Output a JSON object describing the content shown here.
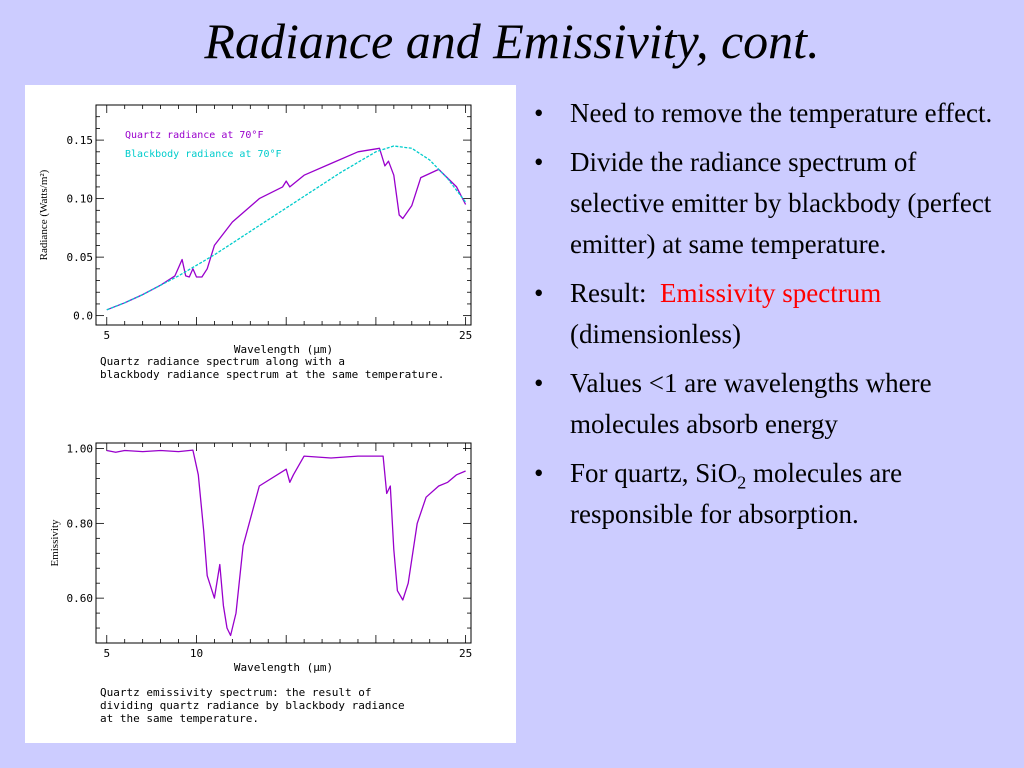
{
  "slide": {
    "title": "Radiance and Emissivity, cont."
  },
  "figure": {
    "top_caption": [
      "Quartz radiance spectrum along with a",
      "blackbody radiance spectrum at the same temperature."
    ],
    "bottom_caption": [
      "Quartz emissivity spectrum: the result of",
      "dividing quartz radiance by blackbody radiance",
      "at the same temperature."
    ]
  },
  "bullets": [
    {
      "text": "Need to remove the temperature effect."
    },
    {
      "text": "Divide the radiance spectrum of selective emitter by blackbody (perfect emitter) at same temperature."
    },
    {
      "prefix": "Result:  ",
      "highlight": "Emissivity spectrum",
      "suffix": " (dimensionless)",
      "highlight_color": "#ff0000"
    },
    {
      "text": "Values <1 are wavelengths where molecules absorb energy"
    },
    {
      "prefix": "For quartz, SiO",
      "sub": "2",
      "suffix": " molecules are responsible for absorption."
    }
  ],
  "chart_data": [
    {
      "type": "line",
      "title": "",
      "xlabel": "Wavelength (μm)",
      "ylabel": "Radiance (Watts/m²)",
      "xlim": [
        4.4,
        25.3
      ],
      "ylim": [
        -0.008,
        0.18
      ],
      "x_ticks": [
        5,
        25
      ],
      "y_ticks": [
        0.0,
        0.05,
        0.1,
        0.15
      ],
      "y_tick_labels": [
        "0.0",
        "0.05",
        "0.10",
        "0.15"
      ],
      "legend": "top-left",
      "series": [
        {
          "name": "Quartz radiance at 70°F",
          "color": "#9900cc",
          "x": [
            5,
            6,
            7,
            8,
            8.8,
            9.0,
            9.2,
            9.4,
            9.6,
            9.8,
            10.0,
            10.3,
            10.6,
            11,
            12,
            13.5,
            14.8,
            15.0,
            15.2,
            16,
            17.5,
            19,
            20.2,
            20.5,
            20.7,
            21.0,
            21.3,
            21.5,
            22.0,
            22.5,
            23.5,
            24.5,
            25
          ],
          "y": [
            0.005,
            0.011,
            0.018,
            0.026,
            0.034,
            0.041,
            0.048,
            0.034,
            0.033,
            0.04,
            0.033,
            0.033,
            0.04,
            0.06,
            0.08,
            0.1,
            0.11,
            0.115,
            0.11,
            0.12,
            0.13,
            0.14,
            0.143,
            0.128,
            0.132,
            0.12,
            0.086,
            0.083,
            0.094,
            0.118,
            0.125,
            0.11,
            0.095
          ]
        },
        {
          "name": "Blackbody radiance at 70°F",
          "color": "#00cccc",
          "x": [
            5,
            6,
            7,
            8,
            9,
            10,
            11,
            12,
            13,
            14,
            15,
            16,
            17,
            18,
            19,
            20,
            21,
            22,
            23,
            24,
            25
          ],
          "y": [
            0.005,
            0.011,
            0.018,
            0.026,
            0.034,
            0.043,
            0.052,
            0.062,
            0.072,
            0.082,
            0.092,
            0.102,
            0.112,
            0.122,
            0.131,
            0.14,
            0.145,
            0.143,
            0.133,
            0.117,
            0.097
          ]
        }
      ]
    },
    {
      "type": "line",
      "title": "",
      "xlabel": "Wavelength (μm)",
      "ylabel": "Emissivity",
      "xlim": [
        4.4,
        25.3
      ],
      "ylim": [
        0.48,
        1.015
      ],
      "x_ticks": [
        5,
        10,
        25
      ],
      "y_ticks": [
        0.6,
        0.8,
        1.0
      ],
      "y_tick_labels": [
        "0.60",
        "0.80",
        "1.00"
      ],
      "series": [
        {
          "name": "",
          "color": "#9900cc",
          "x": [
            5,
            5.5,
            6,
            7,
            8,
            9,
            9.8,
            10.1,
            10.4,
            10.6,
            11.0,
            11.3,
            11.5,
            11.7,
            11.9,
            12.2,
            12.6,
            13.5,
            15,
            15.2,
            15.4,
            16,
            17.5,
            19,
            20.4,
            20.6,
            20.8,
            21.0,
            21.2,
            21.5,
            21.8,
            22.3,
            22.8,
            23.5,
            24,
            24.5,
            25
          ],
          "y": [
            0.995,
            0.99,
            0.995,
            0.992,
            0.995,
            0.992,
            0.996,
            0.93,
            0.78,
            0.66,
            0.6,
            0.69,
            0.58,
            0.52,
            0.5,
            0.56,
            0.74,
            0.9,
            0.945,
            0.91,
            0.93,
            0.98,
            0.975,
            0.98,
            0.98,
            0.88,
            0.9,
            0.73,
            0.62,
            0.595,
            0.64,
            0.8,
            0.87,
            0.9,
            0.91,
            0.93,
            0.94
          ]
        }
      ]
    }
  ]
}
